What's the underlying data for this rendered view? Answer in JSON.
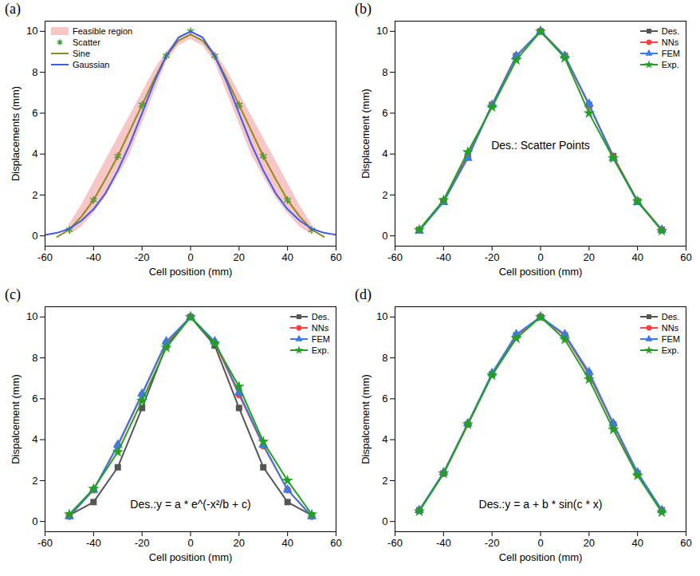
{
  "chart_data": [
    {
      "type": "line",
      "label": "(a)",
      "x_label": "Cell position (mm)",
      "y_label": "Displacements (mm)",
      "xlim": [
        -60,
        60
      ],
      "xticks": [
        -60,
        -40,
        -20,
        0,
        20,
        40,
        60
      ],
      "ylim": [
        -0.5,
        10.5
      ],
      "yticks": [
        0,
        2,
        4,
        6,
        8,
        10
      ],
      "grid": false,
      "legend": "upper left",
      "series": [
        {
          "name": "Feasible region",
          "type": "area",
          "color": "#f4a0a0",
          "x": [
            -50,
            -45,
            -40,
            -35,
            -30,
            -25,
            -20,
            -15,
            -10,
            -5,
            0,
            5,
            10,
            15,
            20,
            25,
            30,
            35,
            40,
            45,
            50
          ],
          "lower": [
            0.05,
            0.45,
            1.1,
            1.9,
            2.9,
            4.0,
            5.5,
            7.0,
            8.5,
            9.3,
            9.6,
            9.3,
            8.5,
            7.0,
            5.5,
            4.0,
            2.9,
            1.9,
            1.1,
            0.45,
            0.05
          ],
          "upper": [
            0.55,
            1.5,
            2.6,
            3.7,
            4.8,
            5.9,
            7.0,
            8.1,
            9.0,
            9.6,
            9.9,
            9.6,
            9.0,
            8.1,
            7.0,
            5.9,
            4.8,
            3.7,
            2.6,
            1.5,
            0.55
          ]
        },
        {
          "name": "Scatter",
          "type": "scatter",
          "color": "#2e9a2e",
          "marker": "asterisk",
          "x": [
            -50,
            -40,
            -30,
            -20,
            -10,
            0,
            10,
            20,
            30,
            40,
            50
          ],
          "values": [
            0.3,
            1.75,
            3.9,
            6.4,
            8.8,
            10,
            8.8,
            6.4,
            3.9,
            1.75,
            0.3
          ]
        },
        {
          "name": "Sine",
          "type": "line",
          "color": "#8c8a1c",
          "x": [
            -55,
            -50,
            -45,
            -40,
            -35,
            -30,
            -25,
            -20,
            -15,
            -10,
            -5,
            0,
            5,
            10,
            15,
            20,
            25,
            30,
            35,
            40,
            45,
            50,
            55
          ],
          "values": [
            -0.05,
            0.3,
            0.95,
            1.75,
            2.8,
            3.9,
            5.15,
            6.4,
            7.65,
            8.8,
            9.55,
            9.85,
            9.55,
            8.8,
            7.65,
            6.4,
            5.15,
            3.9,
            2.8,
            1.75,
            0.95,
            0.3,
            -0.05
          ]
        },
        {
          "name": "Gaussian",
          "type": "line",
          "color": "#3b5bf0",
          "x": [
            -60,
            -55,
            -50,
            -45,
            -40,
            -35,
            -30,
            -25,
            -20,
            -15,
            -10,
            -5,
            0,
            5,
            10,
            15,
            20,
            25,
            30,
            35,
            40,
            45,
            50,
            55,
            60
          ],
          "values": [
            0.05,
            0.15,
            0.35,
            0.75,
            1.3,
            2.1,
            3.2,
            4.5,
            6.0,
            7.5,
            8.8,
            9.7,
            10.0,
            9.7,
            8.8,
            7.5,
            6.0,
            4.5,
            3.2,
            2.1,
            1.3,
            0.75,
            0.35,
            0.15,
            0.05
          ]
        }
      ]
    },
    {
      "type": "line",
      "label": "(b)",
      "x_label": "Cell position (mm)",
      "y_label": "Displacement (mm)",
      "xlim": [
        -60,
        60
      ],
      "xticks": [
        -60,
        -40,
        -20,
        0,
        20,
        40,
        60
      ],
      "ylim": [
        -0.5,
        10.5
      ],
      "yticks": [
        0,
        2,
        4,
        6,
        8,
        10
      ],
      "grid": false,
      "legend": "upper right",
      "annotation": "Des.: Scatter Points",
      "x": [
        -50,
        -40,
        -30,
        -20,
        -10,
        0,
        10,
        20,
        30,
        40,
        50
      ],
      "series": [
        {
          "name": "Des.",
          "color": "#555555",
          "marker": "square",
          "values": [
            0.3,
            1.7,
            3.9,
            6.4,
            8.8,
            10,
            8.8,
            6.4,
            3.9,
            1.7,
            0.3
          ]
        },
        {
          "name": "NNs",
          "color": "#ff4040",
          "marker": "circle",
          "values": [
            0.3,
            1.7,
            3.85,
            6.4,
            8.8,
            10,
            8.8,
            6.4,
            3.85,
            1.7,
            0.3
          ]
        },
        {
          "name": "FEM",
          "color": "#3d7be0",
          "marker": "triangle",
          "values": [
            0.25,
            1.65,
            3.8,
            6.4,
            8.8,
            10,
            8.8,
            6.45,
            3.8,
            1.65,
            0.3
          ]
        },
        {
          "name": "Exp.",
          "color": "#22a022",
          "marker": "star",
          "values": [
            0.3,
            1.75,
            4.1,
            6.3,
            8.6,
            10,
            8.7,
            6.0,
            3.8,
            1.7,
            0.25
          ]
        }
      ]
    },
    {
      "type": "line",
      "label": "(c)",
      "x_label": "Cell position (mm)",
      "y_label": "Dispalcement (mm)",
      "xlim": [
        -60,
        60
      ],
      "xticks": [
        -60,
        -40,
        -20,
        0,
        20,
        40,
        60
      ],
      "ylim": [
        -0.5,
        10.5
      ],
      "yticks": [
        0,
        2,
        4,
        6,
        8,
        10
      ],
      "grid": false,
      "legend": "upper right",
      "annotation": "Des.:y = a * e^(-x²/b + c)",
      "x": [
        -50,
        -40,
        -30,
        -20,
        -10,
        0,
        10,
        20,
        30,
        40,
        50
      ],
      "series": [
        {
          "name": "Des.",
          "color": "#555555",
          "marker": "square",
          "values": [
            0.3,
            0.95,
            2.65,
            5.55,
            8.6,
            10,
            8.6,
            5.55,
            2.65,
            0.95,
            0.3
          ]
        },
        {
          "name": "NNs",
          "color": "#ff4040",
          "marker": "circle",
          "values": [
            0.25,
            1.55,
            3.7,
            6.2,
            8.75,
            10,
            8.75,
            6.2,
            3.7,
            1.55,
            0.25
          ]
        },
        {
          "name": "FEM",
          "color": "#3d7be0",
          "marker": "triangle",
          "values": [
            0.25,
            1.55,
            3.75,
            6.25,
            8.8,
            10,
            8.8,
            6.3,
            3.75,
            1.55,
            0.25
          ]
        },
        {
          "name": "Exp.",
          "color": "#22a022",
          "marker": "star",
          "values": [
            0.35,
            1.6,
            3.4,
            5.9,
            8.5,
            10,
            8.7,
            6.6,
            3.9,
            2.0,
            0.35
          ]
        }
      ]
    },
    {
      "type": "line",
      "label": "(d)",
      "x_label": "Cell position (mm)",
      "y_label": "Dispalcement (mm)",
      "xlim": [
        -60,
        60
      ],
      "xticks": [
        -60,
        -40,
        -20,
        0,
        20,
        40,
        60
      ],
      "ylim": [
        -0.5,
        10.5
      ],
      "yticks": [
        0,
        2,
        4,
        6,
        8,
        10
      ],
      "grid": false,
      "legend": "upper right",
      "annotation": "Des.:y = a + b * sin(c * x)",
      "x": [
        -50,
        -40,
        -30,
        -20,
        -10,
        0,
        10,
        20,
        30,
        40,
        50
      ],
      "series": [
        {
          "name": "Des.",
          "color": "#555555",
          "marker": "square",
          "values": [
            0.55,
            2.35,
            4.75,
            7.2,
            9.1,
            10,
            9.1,
            7.2,
            4.75,
            2.35,
            0.55
          ]
        },
        {
          "name": "NNs",
          "color": "#ff4040",
          "marker": "circle",
          "values": [
            0.55,
            2.35,
            4.75,
            7.2,
            9.1,
            10,
            9.1,
            7.25,
            4.75,
            2.35,
            0.55
          ]
        },
        {
          "name": "FEM",
          "color": "#3d7be0",
          "marker": "triangle",
          "values": [
            0.55,
            2.4,
            4.8,
            7.25,
            9.15,
            10,
            9.15,
            7.3,
            4.8,
            2.4,
            0.55
          ]
        },
        {
          "name": "Exp.",
          "color": "#22a022",
          "marker": "star",
          "values": [
            0.5,
            2.35,
            4.75,
            7.15,
            8.95,
            10,
            8.9,
            6.95,
            4.5,
            2.25,
            0.45
          ]
        }
      ]
    }
  ]
}
